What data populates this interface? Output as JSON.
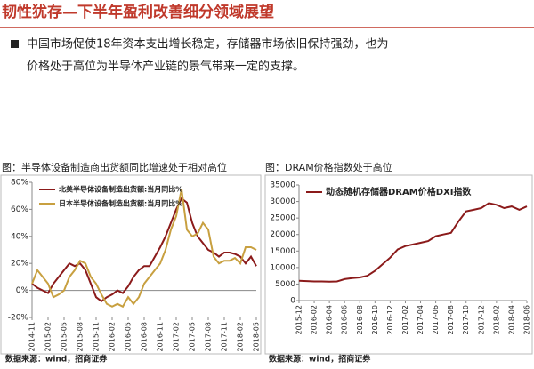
{
  "title": "韧性犹存—下半年盈利改善细分领域展望",
  "bullet": [
    "中国市场促使18年资本支出增长稳定，存储器市场依旧保持强劲，也为",
    "价格处于高位为半导体产业链的景气带来一定的支撑。"
  ],
  "chart_data": [
    {
      "type": "line",
      "title": "图：半导体设备制造商出货额同比增速处于相对高位",
      "source": "数据来源：wind，招商证券",
      "legend": "upper left",
      "grid": false,
      "categories": [
        "2014-11",
        null,
        null,
        "2015-02",
        null,
        null,
        "2015-05",
        null,
        null,
        "2015-08",
        null,
        null,
        "2015-11",
        null,
        null,
        "2016-02",
        null,
        null,
        "2016-05",
        null,
        null,
        "2016-08",
        null,
        null,
        "2016-11",
        null,
        null,
        "2017-02",
        null,
        null,
        "2017-05",
        null,
        null,
        "2017-08",
        null,
        null,
        "2017-11",
        null,
        null,
        "2018-02",
        null,
        null,
        "2018-05"
      ],
      "ylim": [
        -20,
        80
      ],
      "yticks": [
        {
          "value": -20,
          "label": "-20%"
        },
        {
          "value": 0,
          "label": "0%"
        },
        {
          "value": 20,
          "label": "20%"
        },
        {
          "value": 40,
          "label": "40%"
        },
        {
          "value": 60,
          "label": "60%"
        },
        {
          "value": 80,
          "label": "80%"
        }
      ],
      "series": [
        {
          "name": "北美半导体设备制造出货额:当月同比%",
          "color": "#8b1a1a",
          "values": [
            5,
            2,
            0,
            -2,
            5,
            10,
            15,
            20,
            18,
            20,
            15,
            5,
            -5,
            -8,
            -5,
            -3,
            0,
            -2,
            3,
            10,
            15,
            18,
            18,
            25,
            32,
            40,
            50,
            60,
            68,
            65,
            50,
            40,
            35,
            30,
            28,
            25,
            28,
            28,
            27,
            25,
            20,
            25,
            18
          ]
        },
        {
          "name": "日本半导体设备制造出货额:当月同比%",
          "color": "#c8a040",
          "values": [
            5,
            15,
            10,
            5,
            -5,
            -3,
            0,
            10,
            15,
            22,
            20,
            10,
            5,
            -3,
            -10,
            -12,
            -10,
            -12,
            -5,
            -10,
            -5,
            5,
            10,
            15,
            20,
            30,
            45,
            55,
            75,
            45,
            40,
            42,
            50,
            45,
            25,
            20,
            22,
            22,
            24,
            20,
            32,
            32,
            30
          ]
        }
      ]
    },
    {
      "type": "line",
      "title": "图：DRAM价格指数处于高位",
      "source": "数据来源：wind，招商证券",
      "legend": "upper left",
      "grid": false,
      "categories": [
        "2015-12",
        null,
        "2016-02",
        null,
        "2016-04",
        null,
        "2016-06",
        null,
        "2016-08",
        null,
        "2016-10",
        null,
        "2016-12",
        null,
        "2017-02",
        null,
        "2017-04",
        null,
        "2017-06",
        null,
        "2017-08",
        null,
        "2017-10",
        null,
        "2017-12",
        null,
        "2018-02",
        null,
        "2018-04",
        null,
        "2018-06"
      ],
      "ylim": [
        0,
        35000
      ],
      "yticks": [
        0,
        5000,
        10000,
        15000,
        20000,
        25000,
        30000,
        35000
      ],
      "series": [
        {
          "name": "动态随机存储器DRAM价格DXI指数",
          "color": "#8b1a1a",
          "values": [
            6000,
            5900,
            5800,
            5800,
            5700,
            5800,
            6500,
            6800,
            7000,
            7500,
            9000,
            11000,
            13000,
            15500,
            16500,
            17000,
            17500,
            18000,
            19500,
            20000,
            20500,
            24000,
            27000,
            27500,
            28000,
            29500,
            29000,
            28000,
            28500,
            27500,
            28500
          ]
        }
      ]
    }
  ]
}
